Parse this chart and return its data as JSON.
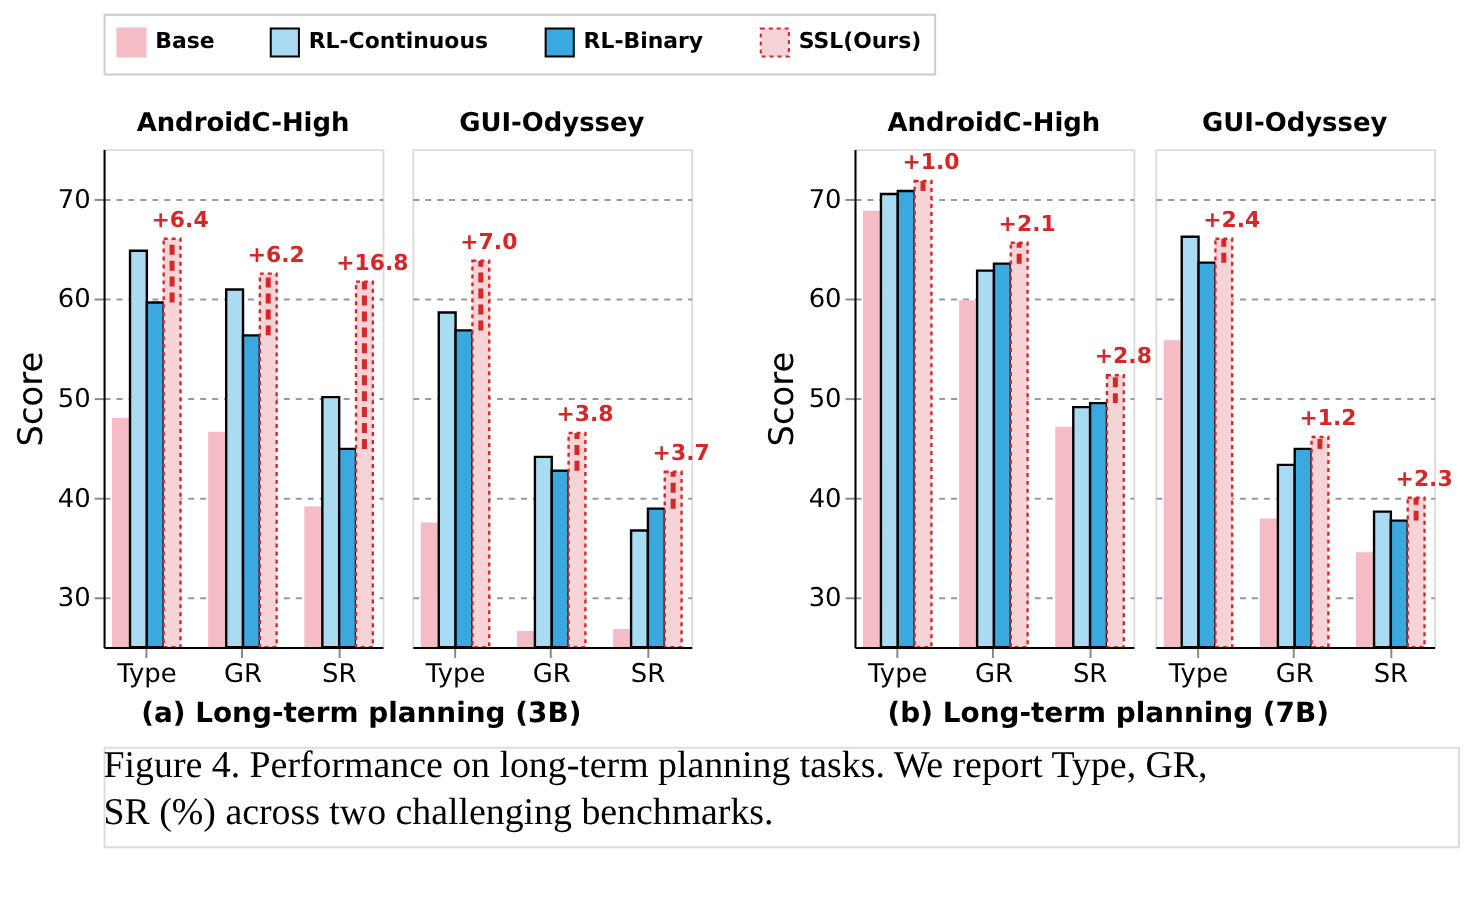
{
  "chart_data": [
    {
      "type": "bar",
      "xlabel": "(a) Long-term planning (3B)",
      "ylabel": "Score",
      "categories": [
        "Type",
        "GR",
        "SR",
        "Type",
        "GR",
        "SR"
      ],
      "ylim": [
        25,
        75
      ],
      "yticks": [
        30,
        40,
        50,
        60,
        70
      ],
      "grid": "y",
      "legend": "top",
      "annotations": [
        "AndroidC-High",
        "GUI-Odyssey",
        "+6.4",
        "+6.2",
        "+16.8",
        "+7.0",
        "+3.8",
        "+3.7"
      ],
      "series": [
        {
          "name": "Base",
          "color": "#f6bcc6",
          "values": [
            47.9,
            46.5,
            39.0,
            37.4,
            26.5,
            26.7
          ]
        },
        {
          "name": "RL-Continuous",
          "color": "#a9dcf3",
          "values": [
            64.8,
            60.9,
            50.1,
            58.6,
            44.1,
            36.7
          ]
        },
        {
          "name": "RL-Binary",
          "color": "#39a9e0",
          "values": [
            59.6,
            56.3,
            44.9,
            56.8,
            42.7,
            38.9
          ]
        },
        {
          "name": "SSL(Ours)",
          "color": "#f5d3d6",
          "values": [
            66.0,
            62.5,
            61.7,
            63.8,
            46.5,
            42.6
          ],
          "errors": [
            [
              59.6,
              66.0
            ],
            [
              56.3,
              62.5
            ],
            [
              44.9,
              61.7
            ],
            [
              56.8,
              63.8
            ],
            [
              42.7,
              46.5
            ],
            [
              38.9,
              42.6
            ]
          ]
        }
      ]
    },
    {
      "type": "bar",
      "xlabel": "(b) Long-term planning (7B)",
      "ylabel": "Score",
      "categories": [
        "Type",
        "GR",
        "SR",
        "Type",
        "GR",
        "SR"
      ],
      "ylim": [
        25,
        75
      ],
      "yticks": [
        30,
        40,
        50,
        60,
        70
      ],
      "grid": "y",
      "legend": "top",
      "annotations": [
        "AndroidC-High",
        "GUI-Odyssey",
        "+1.0",
        "+2.1",
        "+2.8",
        "+2.4",
        "+1.2",
        "+2.3",
        "Figure 4. Performance on long-term planning tasks. We report Type, GR, SR (%) across two challenging benchmarks."
      ],
      "series": [
        {
          "name": "Base",
          "color": "#f6bcc6",
          "values": [
            68.7,
            59.7,
            47.0,
            55.7,
            37.8,
            34.4
          ]
        },
        {
          "name": "RL-Continuous",
          "color": "#a9dcf3",
          "values": [
            70.5,
            62.8,
            49.1,
            66.2,
            43.3,
            38.6
          ]
        },
        {
          "name": "RL-Binary",
          "color": "#39a9e0",
          "values": [
            70.8,
            63.5,
            49.5,
            63.6,
            44.9,
            37.7
          ]
        },
        {
          "name": "SSL(Ours)",
          "color": "#f5d3d6",
          "values": [
            71.8,
            65.6,
            52.3,
            66.0,
            46.1,
            40.0
          ],
          "errors": [
            [
              70.8,
              71.8
            ],
            [
              63.5,
              65.6
            ],
            [
              49.5,
              52.3
            ],
            [
              63.6,
              66.0
            ],
            [
              44.9,
              46.1
            ],
            [
              37.7,
              40.0
            ]
          ]
        }
      ]
    }
  ]
}
